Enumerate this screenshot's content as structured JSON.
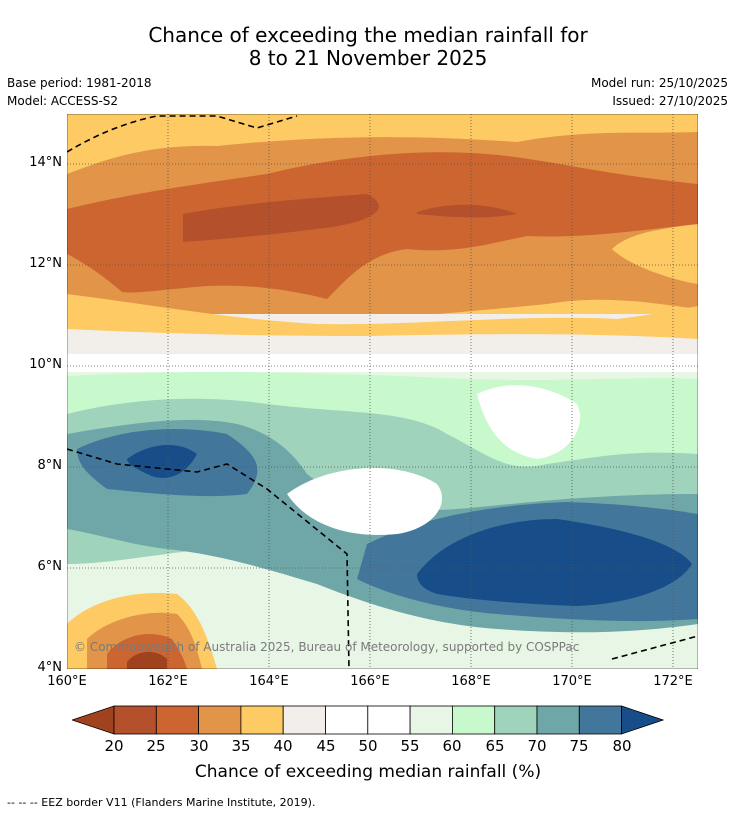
{
  "title": {
    "line1": "Chance of exceeding the median rainfall for",
    "line2": "8 to 21 November 2025"
  },
  "info": {
    "base_period": "Base period: 1981-2018",
    "model": "Model: ACCESS-S2",
    "model_run": "Model run: 25/10/2025",
    "issued": "Issued: 27/10/2025"
  },
  "map": {
    "lon_labels": [
      "160°E",
      "162°E",
      "164°E",
      "166°E",
      "168°E",
      "170°E",
      "172°E"
    ],
    "lat_labels": [
      "14°N",
      "12°N",
      "10°N",
      "8°N",
      "6°N",
      "4°N"
    ],
    "lon_range": [
      160,
      172.5
    ],
    "lat_range": [
      4,
      15.1
    ],
    "copyright": "© Commonwealth of Australia 2025, Bureau of Meteorology, supported by COSPPac"
  },
  "legend": {
    "ticks": [
      "20",
      "25",
      "30",
      "35",
      "40",
      "45",
      "50",
      "55",
      "60",
      "65",
      "70",
      "75",
      "80"
    ],
    "colors": [
      "#a0421e",
      "#b5502c",
      "#cc6530",
      "#e29449",
      "#fdca63",
      "#f2eeea",
      "#ffffff",
      "#ffffff",
      "#e8f6e6",
      "#c8f9cc",
      "#9fd3bb",
      "#6fa7a8",
      "#42779b",
      "#174d89"
    ],
    "title": "Chance of exceeding median rainfall (%)"
  },
  "footer": "--  --  -- EEZ border V11 (Flanders Marine Institute, 2019)."
}
